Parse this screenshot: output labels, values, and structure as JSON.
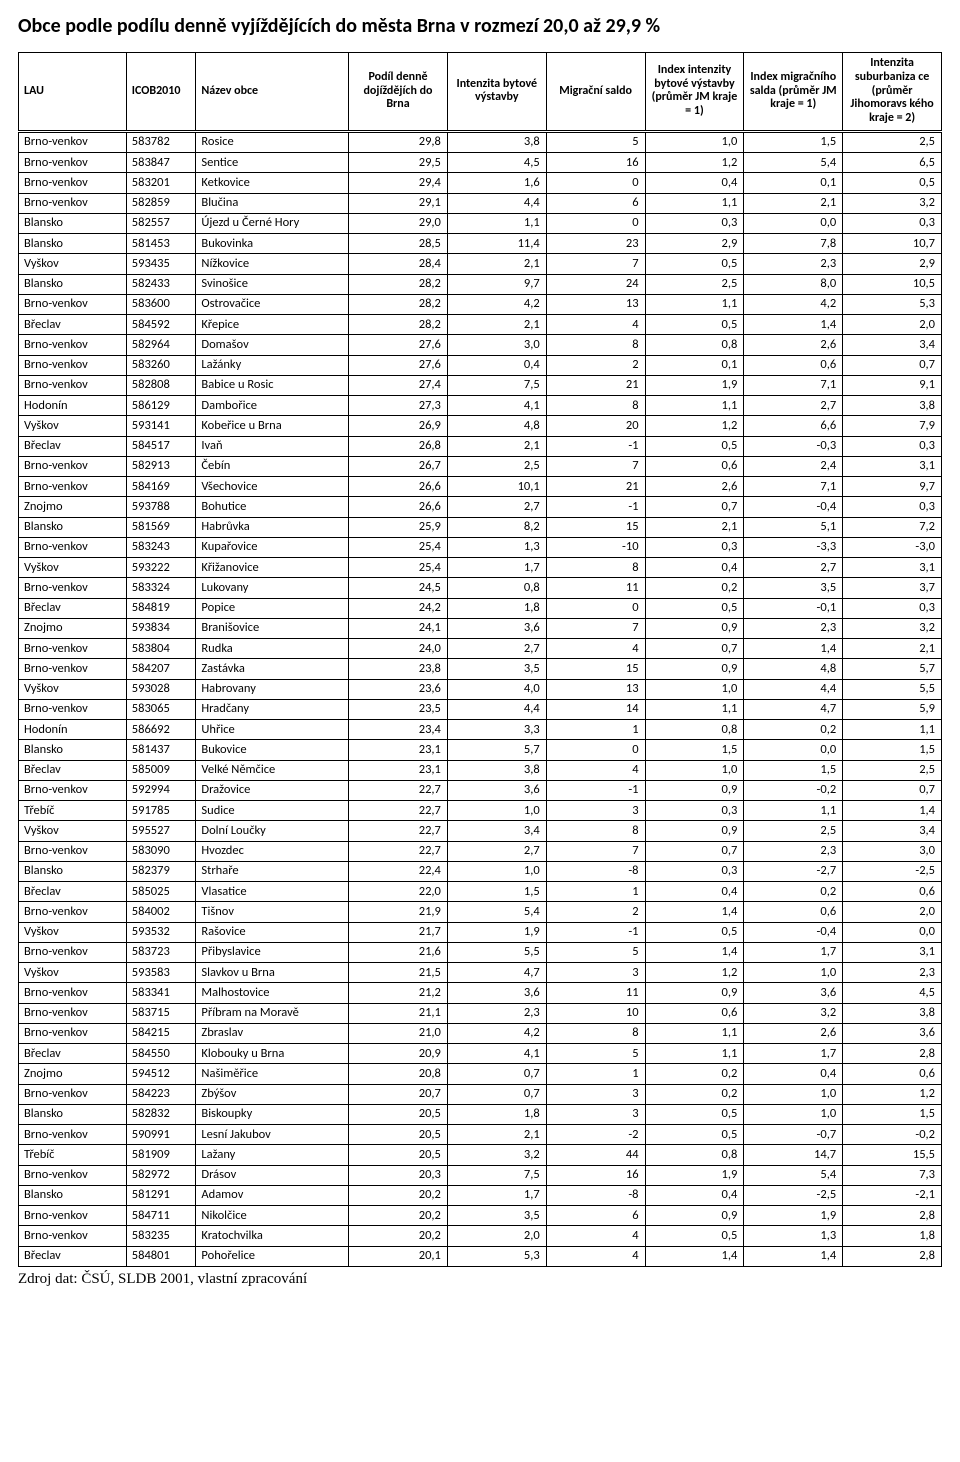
{
  "title": "Obce podle podílu denně vyjíždějících do města Brna v rozmezí 20,0 až 29,9 %",
  "columns": [
    "LAU",
    "ICOB2010",
    "Název obce",
    "Podíl denně dojíždějích do Brna",
    "Intenzita bytové výstavby",
    "Migrační saldo",
    "Index intenzity bytové výstavby (průměr JM kraje = 1)",
    "Index migračního salda (průměr JM kraje = 1)",
    "Intenzita suburbaniza ce (průměr Jihomoravs kého kraje = 2)"
  ],
  "rows": [
    [
      "Brno-venkov",
      "583782",
      "Rosice",
      "29,8",
      "3,8",
      "5",
      "1,0",
      "1,5",
      "2,5"
    ],
    [
      "Brno-venkov",
      "583847",
      "Sentice",
      "29,5",
      "4,5",
      "16",
      "1,2",
      "5,4",
      "6,5"
    ],
    [
      "Brno-venkov",
      "583201",
      "Ketkovice",
      "29,4",
      "1,6",
      "0",
      "0,4",
      "0,1",
      "0,5"
    ],
    [
      "Brno-venkov",
      "582859",
      "Blučina",
      "29,1",
      "4,4",
      "6",
      "1,1",
      "2,1",
      "3,2"
    ],
    [
      "Blansko",
      "582557",
      "Újezd u Černé Hory",
      "29,0",
      "1,1",
      "0",
      "0,3",
      "0,0",
      "0,3"
    ],
    [
      "Blansko",
      "581453",
      "Bukovinka",
      "28,5",
      "11,4",
      "23",
      "2,9",
      "7,8",
      "10,7"
    ],
    [
      "Vyškov",
      "593435",
      "Nížkovice",
      "28,4",
      "2,1",
      "7",
      "0,5",
      "2,3",
      "2,9"
    ],
    [
      "Blansko",
      "582433",
      "Svinošice",
      "28,2",
      "9,7",
      "24",
      "2,5",
      "8,0",
      "10,5"
    ],
    [
      "Brno-venkov",
      "583600",
      "Ostrovačice",
      "28,2",
      "4,2",
      "13",
      "1,1",
      "4,2",
      "5,3"
    ],
    [
      "Břeclav",
      "584592",
      "Křepice",
      "28,2",
      "2,1",
      "4",
      "0,5",
      "1,4",
      "2,0"
    ],
    [
      "Brno-venkov",
      "582964",
      "Domašov",
      "27,6",
      "3,0",
      "8",
      "0,8",
      "2,6",
      "3,4"
    ],
    [
      "Brno-venkov",
      "583260",
      "Lažánky",
      "27,6",
      "0,4",
      "2",
      "0,1",
      "0,6",
      "0,7"
    ],
    [
      "Brno-venkov",
      "582808",
      "Babice u Rosic",
      "27,4",
      "7,5",
      "21",
      "1,9",
      "7,1",
      "9,1"
    ],
    [
      "Hodonín",
      "586129",
      "Dambořice",
      "27,3",
      "4,1",
      "8",
      "1,1",
      "2,7",
      "3,8"
    ],
    [
      "Vyškov",
      "593141",
      "Kobeřice u Brna",
      "26,9",
      "4,8",
      "20",
      "1,2",
      "6,6",
      "7,9"
    ],
    [
      "Břeclav",
      "584517",
      "Ivaň",
      "26,8",
      "2,1",
      "-1",
      "0,5",
      "-0,3",
      "0,3"
    ],
    [
      "Brno-venkov",
      "582913",
      "Čebín",
      "26,7",
      "2,5",
      "7",
      "0,6",
      "2,4",
      "3,1"
    ],
    [
      "Brno-venkov",
      "584169",
      "Všechovice",
      "26,6",
      "10,1",
      "21",
      "2,6",
      "7,1",
      "9,7"
    ],
    [
      "Znojmo",
      "593788",
      "Bohutice",
      "26,6",
      "2,7",
      "-1",
      "0,7",
      "-0,4",
      "0,3"
    ],
    [
      "Blansko",
      "581569",
      "Habrůvka",
      "25,9",
      "8,2",
      "15",
      "2,1",
      "5,1",
      "7,2"
    ],
    [
      "Brno-venkov",
      "583243",
      "Kupařovice",
      "25,4",
      "1,3",
      "-10",
      "0,3",
      "-3,3",
      "-3,0"
    ],
    [
      "Vyškov",
      "593222",
      "Křižanovice",
      "25,4",
      "1,7",
      "8",
      "0,4",
      "2,7",
      "3,1"
    ],
    [
      "Brno-venkov",
      "583324",
      "Lukovany",
      "24,5",
      "0,8",
      "11",
      "0,2",
      "3,5",
      "3,7"
    ],
    [
      "Břeclav",
      "584819",
      "Popice",
      "24,2",
      "1,8",
      "0",
      "0,5",
      "-0,1",
      "0,3"
    ],
    [
      "Znojmo",
      "593834",
      "Branišovice",
      "24,1",
      "3,6",
      "7",
      "0,9",
      "2,3",
      "3,2"
    ],
    [
      "Brno-venkov",
      "583804",
      "Rudka",
      "24,0",
      "2,7",
      "4",
      "0,7",
      "1,4",
      "2,1"
    ],
    [
      "Brno-venkov",
      "584207",
      "Zastávka",
      "23,8",
      "3,5",
      "15",
      "0,9",
      "4,8",
      "5,7"
    ],
    [
      "Vyškov",
      "593028",
      "Habrovany",
      "23,6",
      "4,0",
      "13",
      "1,0",
      "4,4",
      "5,5"
    ],
    [
      "Brno-venkov",
      "583065",
      "Hradčany",
      "23,5",
      "4,4",
      "14",
      "1,1",
      "4,7",
      "5,9"
    ],
    [
      "Hodonín",
      "586692",
      "Uhřice",
      "23,4",
      "3,3",
      "1",
      "0,8",
      "0,2",
      "1,1"
    ],
    [
      "Blansko",
      "581437",
      "Bukovice",
      "23,1",
      "5,7",
      "0",
      "1,5",
      "0,0",
      "1,5"
    ],
    [
      "Břeclav",
      "585009",
      "Velké Němčice",
      "23,1",
      "3,8",
      "4",
      "1,0",
      "1,5",
      "2,5"
    ],
    [
      "Brno-venkov",
      "592994",
      "Dražovice",
      "22,7",
      "3,6",
      "-1",
      "0,9",
      "-0,2",
      "0,7"
    ],
    [
      "Třebíč",
      "591785",
      "Sudice",
      "22,7",
      "1,0",
      "3",
      "0,3",
      "1,1",
      "1,4"
    ],
    [
      "Vyškov",
      "595527",
      "Dolní Loučky",
      "22,7",
      "3,4",
      "8",
      "0,9",
      "2,5",
      "3,4"
    ],
    [
      "Brno-venkov",
      "583090",
      "Hvozdec",
      "22,7",
      "2,7",
      "7",
      "0,7",
      "2,3",
      "3,0"
    ],
    [
      "Blansko",
      "582379",
      "Strhaře",
      "22,4",
      "1,0",
      "-8",
      "0,3",
      "-2,7",
      "-2,5"
    ],
    [
      "Břeclav",
      "585025",
      "Vlasatice",
      "22,0",
      "1,5",
      "1",
      "0,4",
      "0,2",
      "0,6"
    ],
    [
      "Brno-venkov",
      "584002",
      "Tišnov",
      "21,9",
      "5,4",
      "2",
      "1,4",
      "0,6",
      "2,0"
    ],
    [
      "Vyškov",
      "593532",
      "Rašovice",
      "21,7",
      "1,9",
      "-1",
      "0,5",
      "-0,4",
      "0,0"
    ],
    [
      "Brno-venkov",
      "583723",
      "Přibyslavice",
      "21,6",
      "5,5",
      "5",
      "1,4",
      "1,7",
      "3,1"
    ],
    [
      "Vyškov",
      "593583",
      "Slavkov u Brna",
      "21,5",
      "4,7",
      "3",
      "1,2",
      "1,0",
      "2,3"
    ],
    [
      "Brno-venkov",
      "583341",
      "Malhostovice",
      "21,2",
      "3,6",
      "11",
      "0,9",
      "3,6",
      "4,5"
    ],
    [
      "Brno-venkov",
      "583715",
      "Příbram na Moravě",
      "21,1",
      "2,3",
      "10",
      "0,6",
      "3,2",
      "3,8"
    ],
    [
      "Brno-venkov",
      "584215",
      "Zbraslav",
      "21,0",
      "4,2",
      "8",
      "1,1",
      "2,6",
      "3,6"
    ],
    [
      "Břeclav",
      "584550",
      "Klobouky u Brna",
      "20,9",
      "4,1",
      "5",
      "1,1",
      "1,7",
      "2,8"
    ],
    [
      "Znojmo",
      "594512",
      "Našiměřice",
      "20,8",
      "0,7",
      "1",
      "0,2",
      "0,4",
      "0,6"
    ],
    [
      "Brno-venkov",
      "584223",
      "Zbýšov",
      "20,7",
      "0,7",
      "3",
      "0,2",
      "1,0",
      "1,2"
    ],
    [
      "Blansko",
      "582832",
      "Biskoupky",
      "20,5",
      "1,8",
      "3",
      "0,5",
      "1,0",
      "1,5"
    ],
    [
      "Brno-venkov",
      "590991",
      "Lesní Jakubov",
      "20,5",
      "2,1",
      "-2",
      "0,5",
      "-0,7",
      "-0,2"
    ],
    [
      "Třebíč",
      "581909",
      "Lažany",
      "20,5",
      "3,2",
      "44",
      "0,8",
      "14,7",
      "15,5"
    ],
    [
      "Brno-venkov",
      "582972",
      "Drásov",
      "20,3",
      "7,5",
      "16",
      "1,9",
      "5,4",
      "7,3"
    ],
    [
      "Blansko",
      "581291",
      "Adamov",
      "20,2",
      "1,7",
      "-8",
      "0,4",
      "-2,5",
      "-2,1"
    ],
    [
      "Brno-venkov",
      "584711",
      "Nikolčice",
      "20,2",
      "3,5",
      "6",
      "0,9",
      "1,9",
      "2,8"
    ],
    [
      "Brno-venkov",
      "583235",
      "Kratochvilka",
      "20,2",
      "2,0",
      "4",
      "0,5",
      "1,3",
      "1,8"
    ],
    [
      "Břeclav",
      "584801",
      "Pohořelice",
      "20,1",
      "5,3",
      "4",
      "1,4",
      "1,4",
      "2,8"
    ]
  ],
  "footer": "Zdroj dat: ČSÚ, SLDB 2001, vlastní zpracování"
}
